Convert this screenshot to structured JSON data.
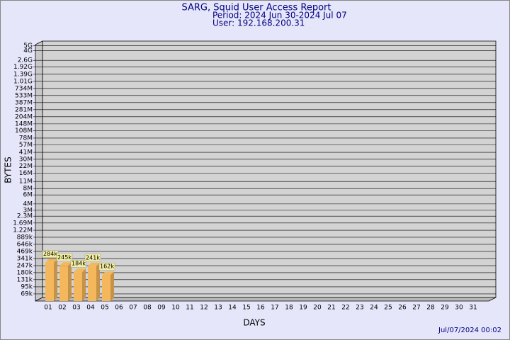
{
  "chart_data": {
    "type": "bar",
    "title": "SARG, Squid User Access Report",
    "subtitle": "Period: 2024 Jun 30-2024 Jul 07",
    "user": "User: 192.168.200.31",
    "x_label": "DAYS",
    "y_label": "BYTES",
    "footer": "Jul/07/2024 00:02",
    "categories": [
      "01",
      "02",
      "03",
      "04",
      "05",
      "06",
      "07",
      "08",
      "09",
      "10",
      "11",
      "12",
      "13",
      "14",
      "15",
      "16",
      "17",
      "18",
      "19",
      "20",
      "21",
      "22",
      "23",
      "24",
      "25",
      "26",
      "27",
      "28",
      "29",
      "30",
      "31"
    ],
    "values": [
      284000,
      245000,
      184000,
      241000,
      162000,
      null,
      null,
      null,
      null,
      null,
      null,
      null,
      null,
      null,
      null,
      null,
      null,
      null,
      null,
      null,
      null,
      null,
      null,
      null,
      null,
      null,
      null,
      null,
      null,
      null,
      null
    ],
    "value_labels": [
      "284k",
      "245k",
      "184k",
      "241k",
      "162k",
      null,
      null,
      null,
      null,
      null,
      null,
      null,
      null,
      null,
      null,
      null,
      null,
      null,
      null,
      null,
      null,
      null,
      null,
      null,
      null,
      null,
      null,
      null,
      null,
      null,
      null
    ],
    "color": "#f5b75b",
    "scale": "log",
    "grid": true,
    "ylim": [
      50000,
      6200000000
    ],
    "yticks": [
      {
        "value": 5000000000,
        "label": "5G"
      },
      {
        "value": 4000000000,
        "label": "4G"
      },
      {
        "value": 2600000000,
        "label": "2.6G"
      },
      {
        "value": 1920000000,
        "label": "1.92G"
      },
      {
        "value": 1390000000,
        "label": "1.39G"
      },
      {
        "value": 1010000000,
        "label": "1.01G"
      },
      {
        "value": 734000000,
        "label": "734M"
      },
      {
        "value": 533000000,
        "label": "533M"
      },
      {
        "value": 387000000,
        "label": "387M"
      },
      {
        "value": 281000000,
        "label": "281M"
      },
      {
        "value": 204000000,
        "label": "204M"
      },
      {
        "value": 148000000,
        "label": "148M"
      },
      {
        "value": 108000000,
        "label": "108M"
      },
      {
        "value": 78000000,
        "label": "78M"
      },
      {
        "value": 57000000,
        "label": "57M"
      },
      {
        "value": 41000000,
        "label": "41M"
      },
      {
        "value": 30000000,
        "label": "30M"
      },
      {
        "value": 22000000,
        "label": "22M"
      },
      {
        "value": 16000000,
        "label": "16M"
      },
      {
        "value": 11000000,
        "label": "11M"
      },
      {
        "value": 8000000,
        "label": "8M"
      },
      {
        "value": 6000000,
        "label": "6M"
      },
      {
        "value": 4000000,
        "label": "4M"
      },
      {
        "value": 3000000,
        "label": "3M"
      },
      {
        "value": 2300000,
        "label": "2.3M"
      },
      {
        "value": 1690000,
        "label": "1.69M"
      },
      {
        "value": 1220000,
        "label": "1.22M"
      },
      {
        "value": 889000,
        "label": "889k"
      },
      {
        "value": 646000,
        "label": "646k"
      },
      {
        "value": 469000,
        "label": "469k"
      },
      {
        "value": 341000,
        "label": "341k"
      },
      {
        "value": 247000,
        "label": "247k"
      },
      {
        "value": 180000,
        "label": "180k"
      },
      {
        "value": 131000,
        "label": "131k"
      },
      {
        "value": 95000,
        "label": "95k"
      },
      {
        "value": 69000,
        "label": "69k"
      }
    ]
  }
}
